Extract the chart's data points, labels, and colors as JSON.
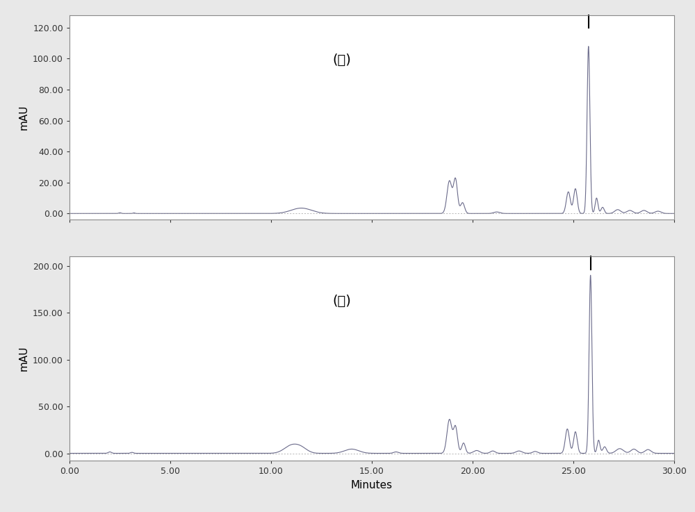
{
  "fig_width": 10.0,
  "fig_height": 7.37,
  "dpi": 100,
  "background_color": "#e8e8e8",
  "plot_background": "#ffffff",
  "line_color": "#6a6a8a",
  "label_A": "(Ａ)",
  "label_B": "(Ｂ)",
  "xlabel": "Minutes",
  "ylabel": "mAU",
  "xlim": [
    0.0,
    30.0
  ],
  "ylim_A": [
    -4.0,
    128.0
  ],
  "ylim_B": [
    -8.0,
    210.0
  ],
  "yticks_A": [
    0.0,
    20.0,
    40.0,
    60.0,
    80.0,
    100.0,
    120.0
  ],
  "yticks_B": [
    0.0,
    50.0,
    100.0,
    150.0,
    200.0
  ],
  "xticks": [
    0.0,
    5.0,
    10.0,
    15.0,
    20.0,
    25.0,
    30.0
  ],
  "tick_fontsize": 9,
  "label_fontsize": 11,
  "annotation_fontsize": 14,
  "line_width": 0.8
}
